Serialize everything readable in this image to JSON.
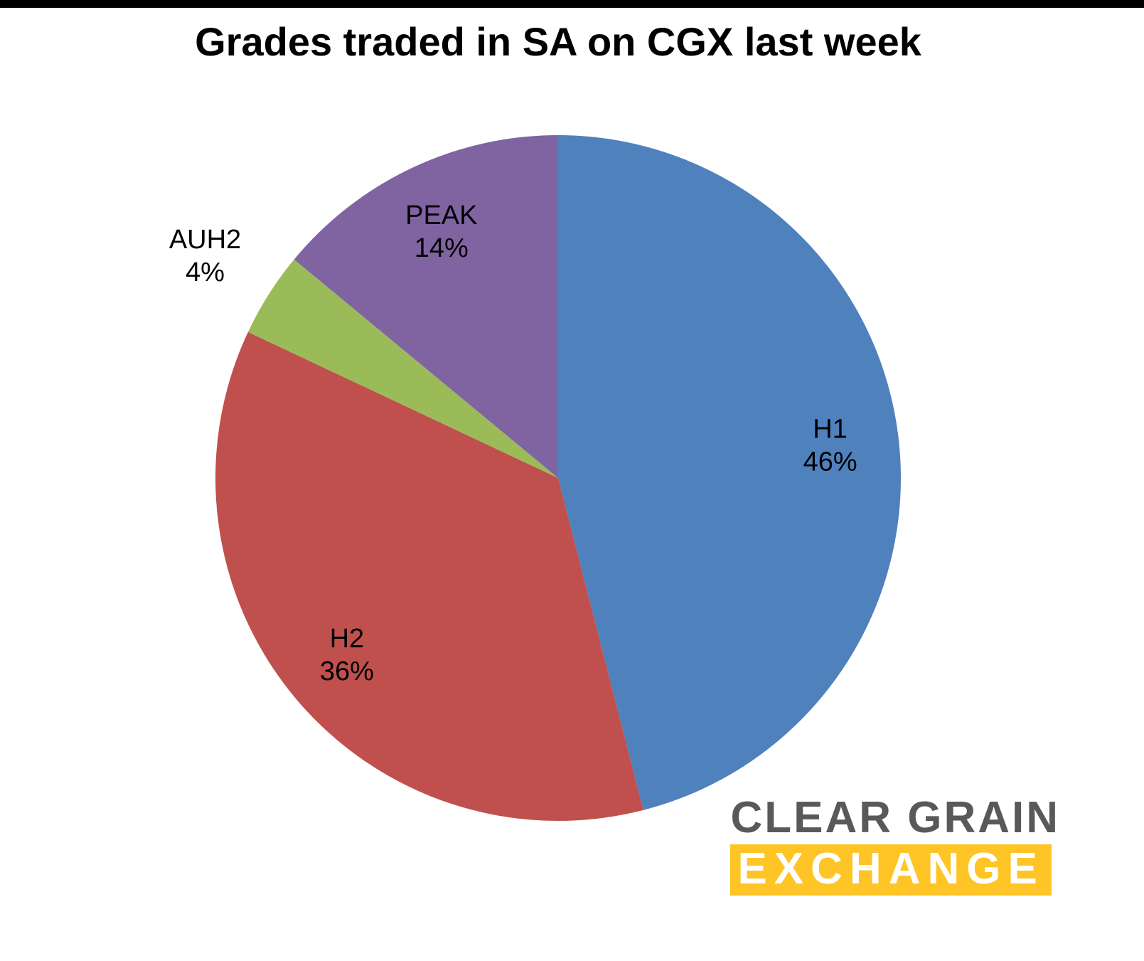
{
  "chart_data": {
    "type": "pie",
    "title": "Grades traded in SA on CGX last week",
    "labels": [
      "H1",
      "H2",
      "AUH2",
      "PEAK"
    ],
    "values": [
      46,
      36,
      4,
      14
    ],
    "unit": "%",
    "colors": [
      "#4f81bd",
      "#c0504d",
      "#9bbb59",
      "#8064a2"
    ],
    "label_placement": [
      "inside",
      "inside",
      "outside",
      "inside"
    ],
    "start_angle_deg": 0,
    "direction": "clockwise",
    "legend": "none",
    "background": "#ffffff"
  },
  "logo": {
    "line1": "CLEAR GRAIN",
    "line2": "EXCHANGE",
    "text_color": "#58595b",
    "accent_color": "#ffc425"
  }
}
